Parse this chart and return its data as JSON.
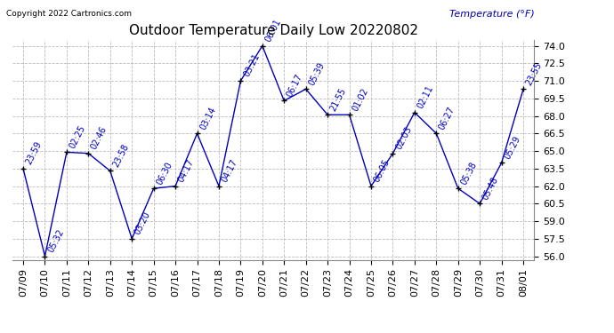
{
  "title": "Outdoor Temperature Daily Low 20220802",
  "copyright": "Copyright 2022 Cartronics.com",
  "ylabel": "Temperature (°F)",
  "x_labels": [
    "07/09",
    "07/10",
    "07/11",
    "07/12",
    "07/13",
    "07/14",
    "07/15",
    "07/16",
    "07/17",
    "07/18",
    "07/19",
    "07/20",
    "07/21",
    "07/22",
    "07/23",
    "07/24",
    "07/25",
    "07/26",
    "07/27",
    "07/28",
    "07/29",
    "07/30",
    "07/31",
    "08/01"
  ],
  "y_values": [
    63.5,
    56.0,
    64.9,
    64.8,
    63.3,
    57.5,
    61.8,
    62.0,
    66.5,
    62.0,
    71.0,
    74.0,
    69.3,
    70.3,
    68.1,
    68.1,
    62.0,
    64.8,
    68.3,
    66.5,
    61.8,
    60.5,
    64.0,
    70.3
  ],
  "point_labels": [
    "23:59",
    "05:32",
    "02:25",
    "02:46",
    "23:58",
    "03:20",
    "06:30",
    "04:17",
    "03:14",
    "04:17",
    "03:21",
    "06:01",
    "06:17",
    "05:39",
    "21:55",
    "01:02",
    "06:05",
    "02:03",
    "02:11",
    "06:27",
    "05:38",
    "05:48",
    "05:29",
    "23:55"
  ],
  "line_color": "#0000bb",
  "bg_color": "#ffffff",
  "grid_color": "#bbbbbb",
  "title_color": "#000000",
  "label_color": "#0000bb",
  "ylim_min": 56.0,
  "ylim_max": 74.0,
  "ytick_step": 1.5,
  "title_fontsize": 11,
  "axis_fontsize": 8,
  "point_label_fontsize": 7
}
